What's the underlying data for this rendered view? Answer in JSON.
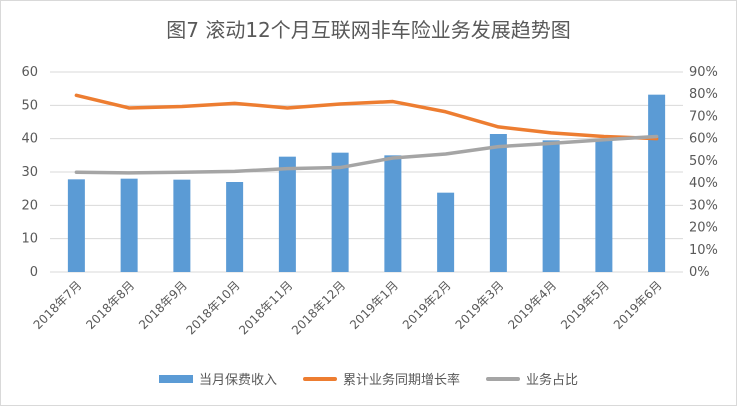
{
  "chart_data": {
    "type": "bar",
    "title": "图7 滚动12个月互联网非车险业务发展趋势图",
    "categories": [
      "2018年7月",
      "2018年8月",
      "2018年9月",
      "2018年10月",
      "2018年11月",
      "2018年12月",
      "2019年1月",
      "2019年2月",
      "2019年3月",
      "2019年4月",
      "2019年5月",
      "2019年6月"
    ],
    "y_left": {
      "min": 0,
      "max": 60,
      "step": 10,
      "ticks": [
        "0",
        "10",
        "20",
        "30",
        "40",
        "50",
        "60"
      ]
    },
    "y_right": {
      "min": 0,
      "max": 90,
      "step": 10,
      "ticks": [
        "0%",
        "10%",
        "20%",
        "30%",
        "40%",
        "50%",
        "60%",
        "70%",
        "80%",
        "90%"
      ]
    },
    "grid": true,
    "legend_position": "bottom",
    "series": [
      {
        "name": "当月保费收入",
        "type": "bar",
        "axis": "left",
        "color": "#5b9bd5",
        "values": [
          27.8,
          28.0,
          27.7,
          27.0,
          34.6,
          35.8,
          35.0,
          23.8,
          41.4,
          39.5,
          40.0,
          53.2
        ]
      },
      {
        "name": "累计业务同期增长率",
        "type": "line",
        "axis": "right",
        "color": "#ed7d31",
        "values": [
          79.5,
          73.8,
          74.5,
          75.9,
          73.8,
          75.6,
          76.7,
          72.1,
          65.3,
          62.6,
          61.0,
          60.0
        ]
      },
      {
        "name": "业务占比",
        "type": "line",
        "axis": "right",
        "color": "#a5a5a5",
        "values": [
          44.9,
          44.6,
          44.9,
          45.3,
          46.5,
          47.0,
          51.3,
          53.1,
          56.4,
          57.9,
          59.5,
          61.0
        ]
      }
    ]
  }
}
